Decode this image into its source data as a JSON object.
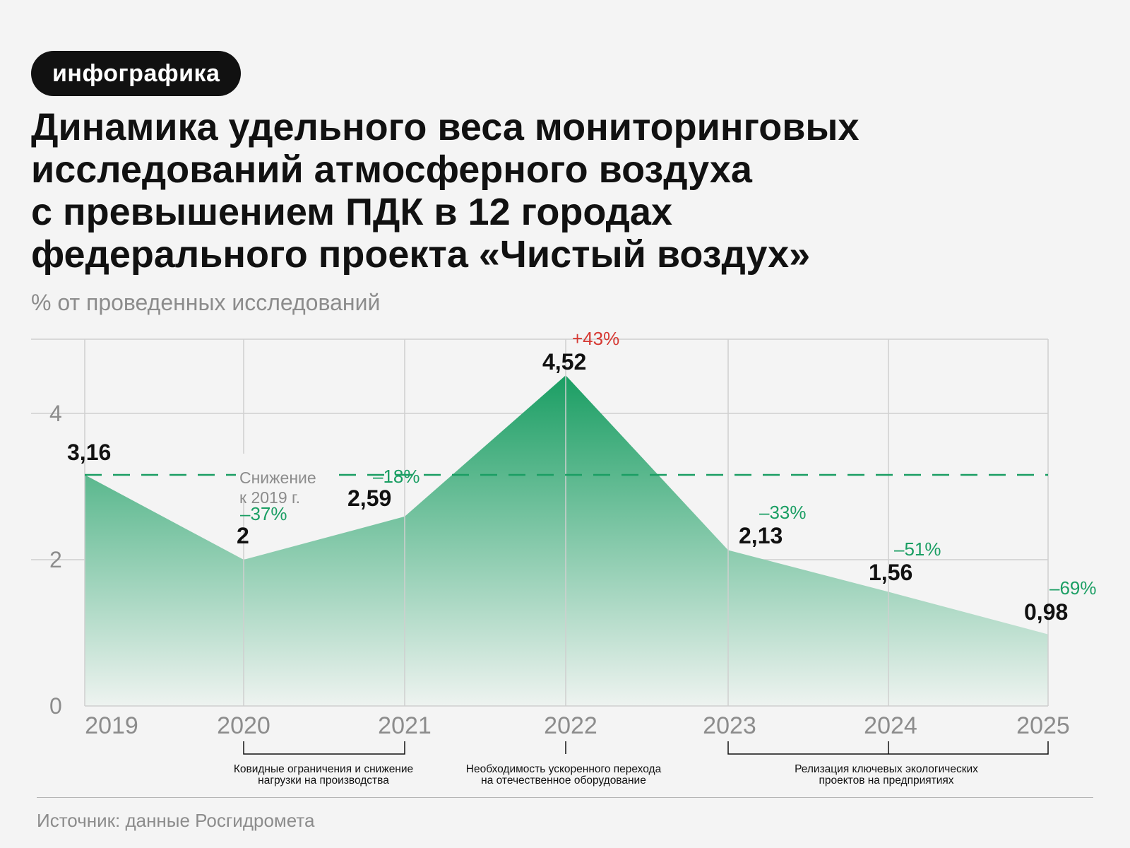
{
  "tag": "инфографика",
  "title_lines": [
    "Динамика удельного веса мониторинговых",
    "исследований атмосферного воздуха",
    "с превышением ПДК в 12 городах",
    "федерального проекта «Чистый воздух»"
  ],
  "subtitle": "% от проведенных исследований",
  "source": "Источник: данные Росгидромета",
  "colors": {
    "area_top": "#1a9e63",
    "area_bottom": "#eef3f0",
    "increase": "#d63a34",
    "decrease": "#1a9e63",
    "grid": "#cfcfcf",
    "axis_text": "#8c8c8c"
  },
  "chart_data": {
    "type": "area",
    "x": [
      "2019",
      "2020",
      "2021",
      "2022",
      "2023",
      "2024",
      "2025"
    ],
    "values": [
      3.16,
      2,
      2.59,
      4.52,
      2.13,
      1.56,
      0.98
    ],
    "value_labels": [
      "3,16",
      "2",
      "2,59",
      "4,52",
      "2,13",
      "1,56",
      "0,98"
    ],
    "change_labels": [
      null,
      "–37%",
      "–18%",
      "+43%",
      "–33%",
      "–51%",
      "–69%"
    ],
    "change_kinds": [
      null,
      "down",
      "down",
      "up",
      "down",
      "down",
      "down"
    ],
    "y_ticks": [
      0,
      2,
      4
    ],
    "y_tick_labels": [
      "0",
      "2",
      "4"
    ],
    "ylim": [
      0,
      5
    ],
    "grid": true,
    "reference_line": {
      "value": 3.16,
      "style": "dashed",
      "label_lines": [
        "Снижение",
        "к 2019 г."
      ]
    },
    "periods": [
      {
        "from": "2020",
        "to": "2021",
        "label_lines": [
          "Ковидные ограничения и снижение",
          "нагрузки на производства"
        ]
      },
      {
        "from": "2022",
        "to": "2022",
        "label_lines": [
          "Необходимость ускоренного перехода",
          "на отечественное оборудование"
        ]
      },
      {
        "from": "2023",
        "to": "2025",
        "label_lines": [
          "Релизация ключевых экологических",
          "проектов на предприятиях"
        ]
      }
    ]
  }
}
